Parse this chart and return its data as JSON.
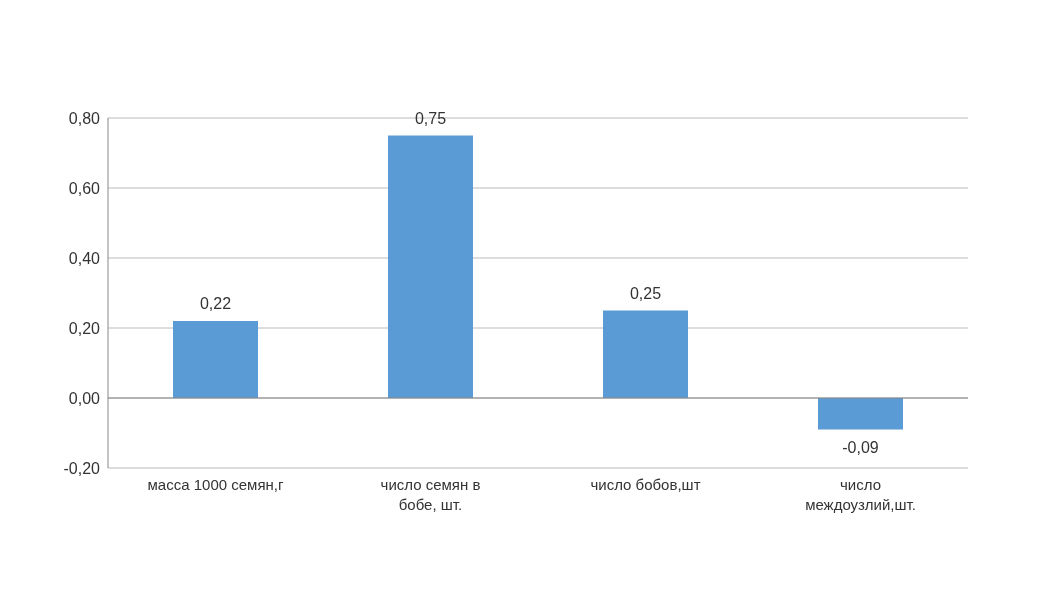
{
  "chart_data": {
    "type": "bar",
    "categories": [
      "масса 1000 семян,г",
      "число семян в бобе, шт.",
      "число бобов,шт",
      "число междоузлий,шт."
    ],
    "values": [
      0.22,
      0.75,
      0.25,
      -0.09
    ],
    "value_labels": [
      "0,22",
      "0,75",
      "0,25",
      "-0,09"
    ],
    "color": "#5b9bd5",
    "ylim": [
      -0.2,
      0.8
    ],
    "yticks": [
      {
        "value": -0.2,
        "label": "-0,20"
      },
      {
        "value": 0,
        "label": "0,00"
      },
      {
        "value": 0.2,
        "label": "0,20"
      },
      {
        "value": 0.4,
        "label": "0,40"
      },
      {
        "value": 0.6,
        "label": "0,60"
      },
      {
        "value": 0.8,
        "label": "0,80"
      }
    ],
    "grid": "y"
  }
}
